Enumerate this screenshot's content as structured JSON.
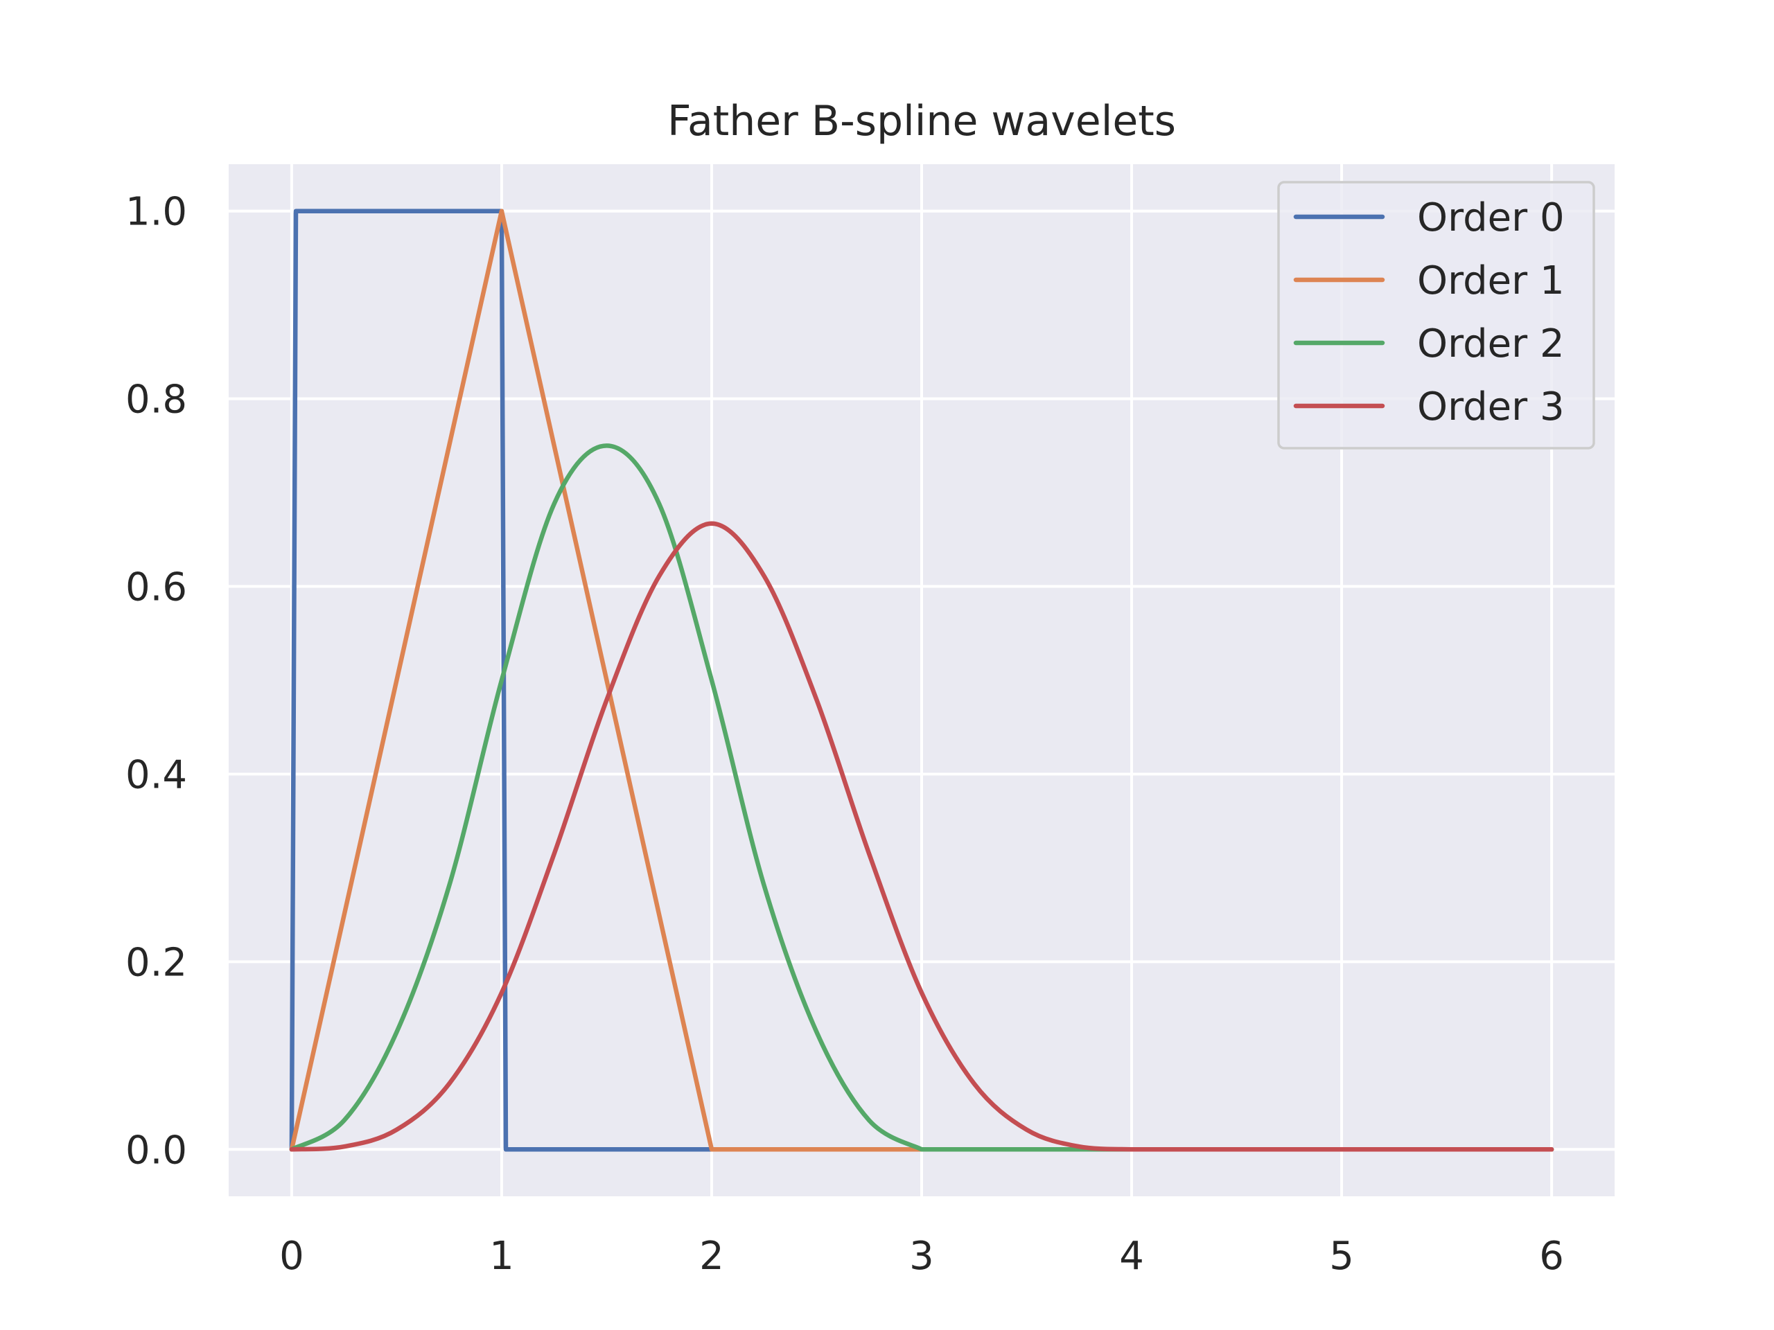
{
  "colors": {
    "background": "#ffffff",
    "plot_background": "#eaeaf2",
    "grid": "#ffffff",
    "text": "#262626",
    "legend_border": "#cccccc",
    "legend_background": "#eaeaf2"
  },
  "chart_data": {
    "type": "line",
    "title": "Father B-spline wavelets",
    "xlabel": "",
    "ylabel": "",
    "xlim": [
      -0.3,
      6.3
    ],
    "ylim": [
      -0.05,
      1.05
    ],
    "xticks": [
      0,
      1,
      2,
      3,
      4,
      5,
      6
    ],
    "xtick_labels": [
      "0",
      "1",
      "2",
      "3",
      "4",
      "5",
      "6"
    ],
    "yticks": [
      0.0,
      0.2,
      0.4,
      0.6,
      0.8,
      1.0
    ],
    "ytick_labels": [
      "0.0",
      "0.2",
      "0.4",
      "0.6",
      "0.8",
      "1.0"
    ],
    "grid": true,
    "legend_position": "top-right",
    "series": [
      {
        "name": "Order 0",
        "color": "#4c72b0",
        "x": [
          0,
          0.02,
          1.0,
          1.02,
          6
        ],
        "y": [
          0,
          1,
          1,
          0,
          0
        ]
      },
      {
        "name": "Order 1",
        "color": "#dd8452",
        "x": [
          0,
          1,
          2,
          6
        ],
        "y": [
          0,
          1,
          0,
          0
        ]
      },
      {
        "name": "Order 2",
        "color": "#55a868",
        "x": [
          0,
          0.25,
          0.5,
          0.75,
          1.0,
          1.25,
          1.5,
          1.75,
          2.0,
          2.25,
          2.5,
          2.75,
          3.0,
          6
        ],
        "y": [
          0,
          0.031,
          0.125,
          0.281,
          0.5,
          0.688,
          0.75,
          0.688,
          0.5,
          0.281,
          0.125,
          0.031,
          0,
          0
        ]
      },
      {
        "name": "Order 3",
        "color": "#c44e52",
        "x": [
          0,
          0.25,
          0.5,
          0.75,
          1.0,
          1.25,
          1.5,
          1.75,
          2.0,
          2.25,
          2.5,
          2.75,
          3.0,
          3.25,
          3.5,
          3.75,
          4.0,
          6
        ],
        "y": [
          0,
          0.003,
          0.021,
          0.07,
          0.167,
          0.315,
          0.479,
          0.611,
          0.667,
          0.611,
          0.479,
          0.315,
          0.167,
          0.07,
          0.021,
          0.003,
          0,
          0
        ]
      }
    ]
  }
}
